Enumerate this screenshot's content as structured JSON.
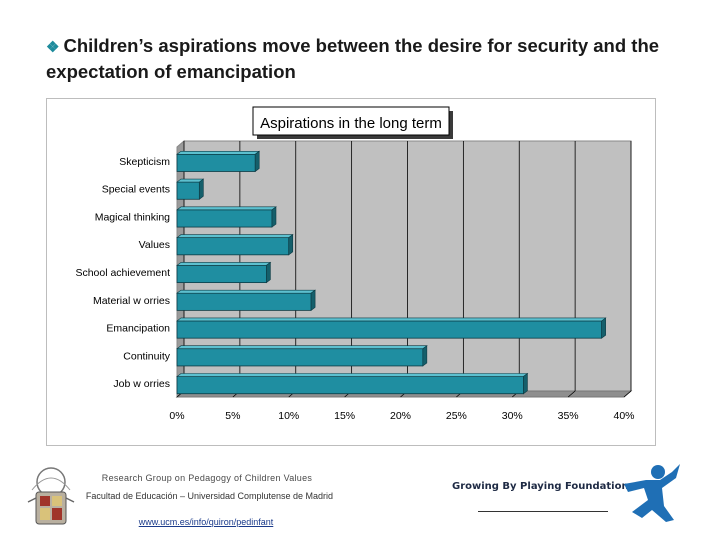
{
  "slide": {
    "bullet_icon": "diamond-bullet-icon",
    "headline": "Children’s aspirations move between the desire for security and the expectation of emancipation",
    "footer": {
      "group_name": "Research Group on Pedagogy of Children Values",
      "faculty": "Facultad de Educación – Universidad Complutense de Madrid",
      "url": "www.ucm.es/info/quiron/pedinfant",
      "foundation": "Growing By Playing Foundation"
    }
  },
  "colors": {
    "bar": "#1f8ea1",
    "bar_top": "#5cc0cf",
    "bar_dark": "#155f6b",
    "plot_bg": "#c0c0c0",
    "wall_side": "#9a9a9a"
  },
  "chart_data": {
    "type": "bar",
    "orientation": "horizontal",
    "title": "Aspirations in the long term",
    "categories": [
      "Skepticism",
      "Special events",
      "Magical thinking",
      "Values",
      "School achievement",
      "Material w orries",
      "Emancipation",
      "Continuity",
      "Job w orries"
    ],
    "values": [
      7,
      2,
      8.5,
      10,
      8,
      12,
      38,
      22,
      31
    ],
    "xlim": [
      0,
      40
    ],
    "ticks": [
      "0%",
      "5%",
      "10%",
      "15%",
      "20%",
      "25%",
      "30%",
      "35%",
      "40%"
    ],
    "xlabel": "",
    "ylabel": "",
    "grid": true,
    "legend": "none"
  }
}
